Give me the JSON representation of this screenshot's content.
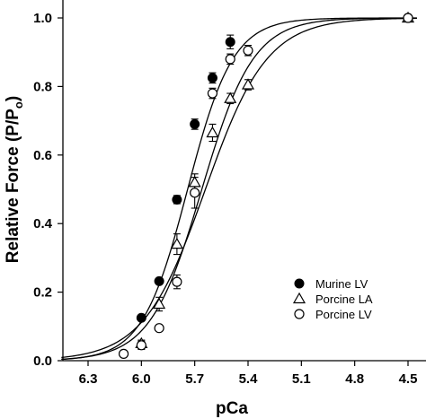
{
  "chart_data": {
    "type": "scatter",
    "xlabel": "pCa",
    "ylabel_main": "Relative Force (P/P",
    "ylabel_sub": "o",
    "ylabel_end": ")",
    "x_reversed": true,
    "xlim": [
      6.45,
      4.45
    ],
    "ylim": [
      0.0,
      1.05
    ],
    "xticks": [
      6.3,
      6.0,
      5.7,
      5.4,
      5.1,
      4.8,
      4.5
    ],
    "xtick_labels": [
      "6.3",
      "6.0",
      "5.7",
      "5.4",
      "5.1",
      "4.8",
      "4.5"
    ],
    "yticks": [
      0.0,
      0.2,
      0.4,
      0.6,
      0.8,
      1.0
    ],
    "ytick_labels": [
      "0.0",
      "0.2",
      "0.4",
      "0.6",
      "0.8",
      "1.0"
    ],
    "grid": false,
    "legend_position": "bottom-right",
    "series": [
      {
        "name": "Murine LV",
        "marker": "filled-circle",
        "fit": {
          "pCa50": 5.74,
          "hill": 3.4
        },
        "points": [
          {
            "x": 6.0,
            "y": 0.125,
            "err": 0.0
          },
          {
            "x": 5.9,
            "y": 0.232,
            "err": 0.0
          },
          {
            "x": 5.8,
            "y": 0.47,
            "err": 0.012
          },
          {
            "x": 5.7,
            "y": 0.69,
            "err": 0.015
          },
          {
            "x": 5.6,
            "y": 0.825,
            "err": 0.015
          },
          {
            "x": 5.5,
            "y": 0.93,
            "err": 0.02
          },
          {
            "x": 4.5,
            "y": 1.0,
            "err": 0.0
          }
        ]
      },
      {
        "name": "Porcine LA",
        "marker": "open-triangle",
        "fit": {
          "pCa50": 5.64,
          "hill": 2.5
        },
        "points": [
          {
            "x": 6.0,
            "y": 0.05,
            "err": 0.01
          },
          {
            "x": 5.9,
            "y": 0.165,
            "err": 0.02
          },
          {
            "x": 5.8,
            "y": 0.34,
            "err": 0.03
          },
          {
            "x": 5.7,
            "y": 0.52,
            "err": 0.025
          },
          {
            "x": 5.6,
            "y": 0.665,
            "err": 0.025
          },
          {
            "x": 5.5,
            "y": 0.765,
            "err": 0.015
          },
          {
            "x": 5.4,
            "y": 0.805,
            "err": 0.015
          },
          {
            "x": 4.5,
            "y": 1.0,
            "err": 0.0
          }
        ]
      },
      {
        "name": "Porcine LV",
        "marker": "open-circle",
        "fit": {
          "pCa50": 5.66,
          "hill": 3.0
        },
        "points": [
          {
            "x": 6.1,
            "y": 0.02,
            "err": 0.0
          },
          {
            "x": 6.0,
            "y": 0.045,
            "err": 0.012
          },
          {
            "x": 5.9,
            "y": 0.095,
            "err": 0.0
          },
          {
            "x": 5.8,
            "y": 0.23,
            "err": 0.02
          },
          {
            "x": 5.7,
            "y": 0.49,
            "err": 0.045
          },
          {
            "x": 5.6,
            "y": 0.78,
            "err": 0.015
          },
          {
            "x": 5.5,
            "y": 0.88,
            "err": 0.015
          },
          {
            "x": 5.4,
            "y": 0.905,
            "err": 0.015
          },
          {
            "x": 4.5,
            "y": 1.0,
            "err": 0.0
          }
        ]
      }
    ]
  }
}
